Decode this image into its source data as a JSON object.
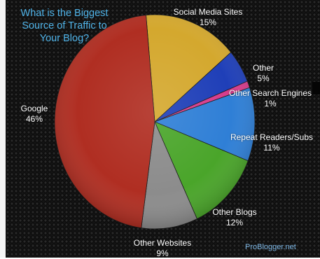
{
  "title_lines": [
    "What is the Biggest",
    "Source of Traffic to",
    "Your Blog?"
  ],
  "source": "ProBlogger.net",
  "colors": {
    "background": "#141414",
    "title": "#4fb3e8",
    "label": "#ffffff",
    "watermark": "#7fb8e6"
  },
  "chart_data": {
    "type": "pie",
    "title": "What is the Biggest Source of Traffic to Your Blog?",
    "start_angle_deg": -5,
    "direction": "clockwise",
    "slices": [
      {
        "label": "Social Media Sites",
        "value": 15,
        "value_label": "15%",
        "color": "#d4a82e"
      },
      {
        "label": "Other",
        "value": 5,
        "value_label": "5%",
        "color": "#1f3fb8"
      },
      {
        "label": "Other Search Engines",
        "value": 1,
        "value_label": "1%",
        "color": "#d63c8c"
      },
      {
        "label": "Repeat Readers/Subs",
        "value": 11,
        "value_label": "11%",
        "color": "#2f7fd6"
      },
      {
        "label": "Other Blogs",
        "value": 12,
        "value_label": "12%",
        "color": "#4aa52a"
      },
      {
        "label": "Other Websites",
        "value": 9,
        "value_label": "9%",
        "color": "#8c8c8c"
      },
      {
        "label": "Google",
        "value": 46,
        "value_label": "46%",
        "color": "#b02e22"
      }
    ]
  }
}
